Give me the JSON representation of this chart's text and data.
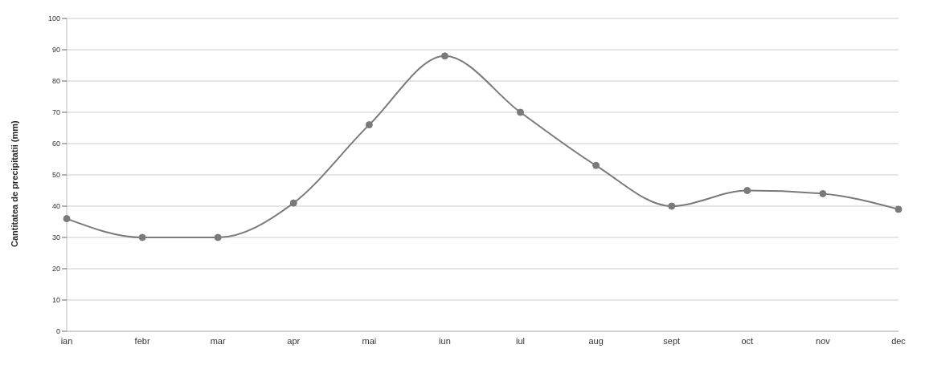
{
  "chart_data": {
    "type": "line",
    "ylabel": "Cantitatea de precipitatii (mm)",
    "categories": [
      "ian",
      "febr",
      "mar",
      "apr",
      "mai",
      "iun",
      "iul",
      "aug",
      "sept",
      "oct",
      "nov",
      "dec"
    ],
    "values": [
      36,
      30,
      30,
      41,
      66,
      88,
      70,
      53,
      40,
      45,
      44,
      39
    ],
    "color": "#7a7a7a",
    "ylim": [
      0,
      100
    ],
    "yticks": [
      0,
      10,
      20,
      30,
      40,
      50,
      60,
      70,
      80,
      90,
      100
    ],
    "grid": "y",
    "marker": "circle",
    "line_style": "solid"
  }
}
